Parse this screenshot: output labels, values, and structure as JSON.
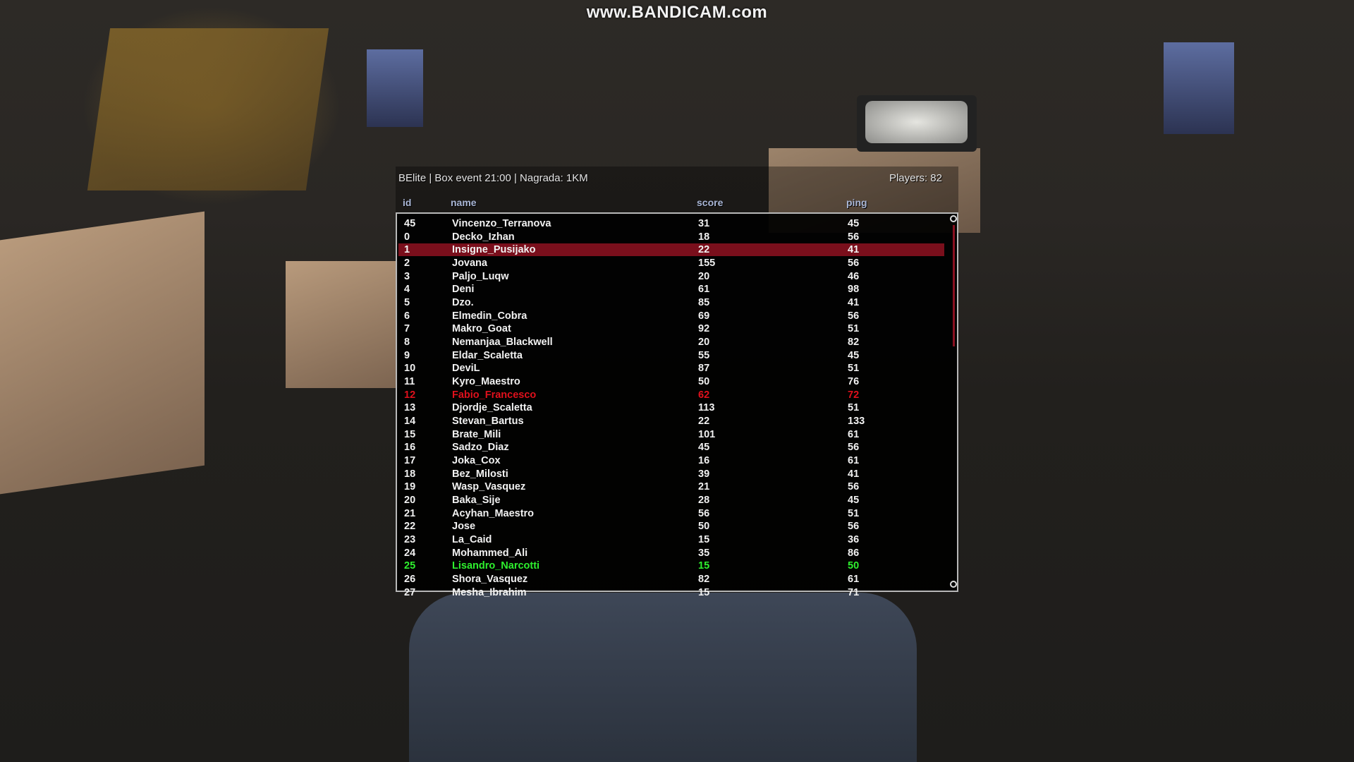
{
  "watermark": "www.BANDICAM.com",
  "scoreboard": {
    "title": "BElite | Box event 21:00 | Nagrada: 1KM",
    "players_label": "Players: 82",
    "columns": {
      "id": "id",
      "name": "name",
      "score": "score",
      "ping": "ping"
    },
    "colors": {
      "selected_row": "#7a0f1c",
      "red_player": "#e0101c",
      "green_player": "#2ef02e",
      "header": "#a9b6d6"
    },
    "rows": [
      {
        "id": "45",
        "name": "Vincenzo_Terranova",
        "score": "31",
        "ping": "45"
      },
      {
        "id": "0",
        "name": "Decko_Izhan",
        "score": "18",
        "ping": "56"
      },
      {
        "id": "1",
        "name": "Insigne_Pusijako",
        "score": "22",
        "ping": "41",
        "selected": true
      },
      {
        "id": "2",
        "name": "Jovana",
        "score": "155",
        "ping": "56"
      },
      {
        "id": "3",
        "name": "Paljo_Luqw",
        "score": "20",
        "ping": "46"
      },
      {
        "id": "4",
        "name": "Deni",
        "score": "61",
        "ping": "98"
      },
      {
        "id": "5",
        "name": "Dzo.",
        "score": "85",
        "ping": "41"
      },
      {
        "id": "6",
        "name": "Elmedin_Cobra",
        "score": "69",
        "ping": "56"
      },
      {
        "id": "7",
        "name": "Makro_Goat",
        "score": "92",
        "ping": "51"
      },
      {
        "id": "8",
        "name": "Nemanjaa_Blackwell",
        "score": "20",
        "ping": "82"
      },
      {
        "id": "9",
        "name": "Eldar_Scaletta",
        "score": "55",
        "ping": "45"
      },
      {
        "id": "10",
        "name": "DeviL",
        "score": "87",
        "ping": "51"
      },
      {
        "id": "11",
        "name": "Kyro_Maestro",
        "score": "50",
        "ping": "76"
      },
      {
        "id": "12",
        "name": "Fabio_Francesco",
        "score": "62",
        "ping": "72",
        "color": "red"
      },
      {
        "id": "13",
        "name": "Djordje_Scaletta",
        "score": "113",
        "ping": "51"
      },
      {
        "id": "14",
        "name": "Stevan_Bartus",
        "score": "22",
        "ping": "133"
      },
      {
        "id": "15",
        "name": "Brate_Mili",
        "score": "101",
        "ping": "61"
      },
      {
        "id": "16",
        "name": "Sadzo_Diaz",
        "score": "45",
        "ping": "56"
      },
      {
        "id": "17",
        "name": "Joka_Cox",
        "score": "16",
        "ping": "61"
      },
      {
        "id": "18",
        "name": "Bez_Milosti",
        "score": "39",
        "ping": "41"
      },
      {
        "id": "19",
        "name": "Wasp_Vasquez",
        "score": "21",
        "ping": "56"
      },
      {
        "id": "20",
        "name": "Baka_Sije",
        "score": "28",
        "ping": "45"
      },
      {
        "id": "21",
        "name": "Acyhan_Maestro",
        "score": "56",
        "ping": "51"
      },
      {
        "id": "22",
        "name": "Jose",
        "score": "50",
        "ping": "56"
      },
      {
        "id": "23",
        "name": "La_Caid",
        "score": "15",
        "ping": "36"
      },
      {
        "id": "24",
        "name": "Mohammed_Ali",
        "score": "35",
        "ping": "86"
      },
      {
        "id": "25",
        "name": "Lisandro_Narcotti",
        "score": "15",
        "ping": "50",
        "color": "green"
      },
      {
        "id": "26",
        "name": "Shora_Vasquez",
        "score": "82",
        "ping": "61"
      },
      {
        "id": "27",
        "name": "Mesha_Ibrahim",
        "score": "15",
        "ping": "71"
      }
    ]
  }
}
